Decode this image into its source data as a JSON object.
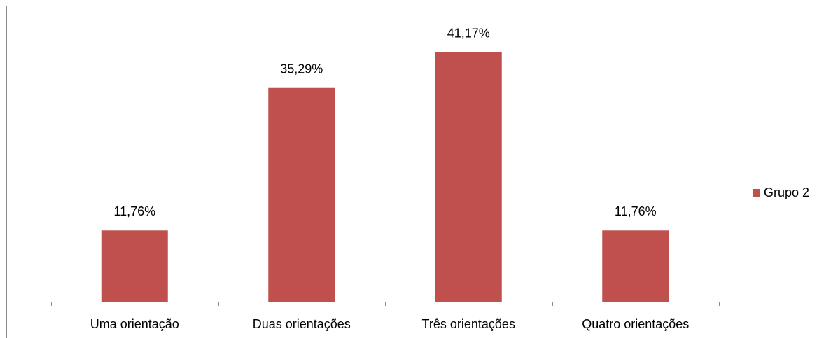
{
  "chart_data": {
    "type": "bar",
    "categories": [
      "Uma orientação",
      "Duas orientações",
      "Três orientações",
      "Quatro orientações"
    ],
    "series": [
      {
        "name": "Grupo 2",
        "color": "#c0504d",
        "values": [
          11.76,
          35.29,
          41.17,
          11.76
        ],
        "value_labels": [
          "11,76%",
          "35,29%",
          "41,17%",
          "11,76%"
        ]
      }
    ],
    "legend": "right"
  }
}
